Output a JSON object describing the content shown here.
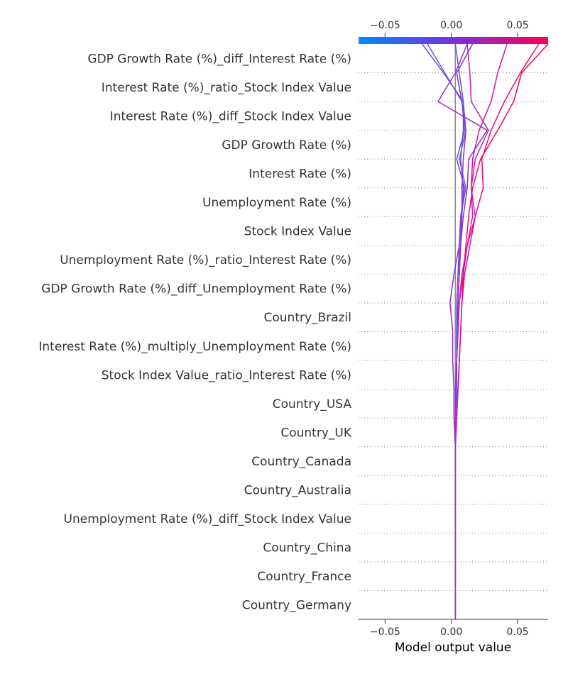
{
  "chart_data": {
    "type": "line",
    "title": "",
    "xlabel": "Model output value",
    "ylabel": "",
    "xlim": [
      -0.07,
      0.073
    ],
    "base_value": 0.003,
    "x_ticks": [
      -0.05,
      0.0,
      0.05
    ],
    "x_tick_labels": [
      "−0.05",
      "0.00",
      "0.05"
    ],
    "colorbar": {
      "colors": [
        "#008bfb",
        "#7a2fe0",
        "#ff0052"
      ]
    },
    "grid": "horizontal-dotted",
    "features": [
      "GDP Growth Rate (%)_diff_Interest Rate (%)",
      "Interest Rate (%)_ratio_Stock Index Value",
      "Interest Rate (%)_diff_Stock Index Value",
      "GDP Growth Rate (%)",
      "Interest Rate (%)",
      "Unemployment Rate (%)",
      "Stock Index Value",
      "Unemployment Rate (%)_ratio_Interest Rate (%)",
      "GDP Growth Rate (%)_diff_Unemployment Rate (%)",
      "Country_Brazil",
      "Interest Rate (%)_multiply_Unemployment Rate (%)",
      "Stock Index Value_ratio_Interest Rate (%)",
      "Country_USA",
      "Country_UK",
      "Country_Canada",
      "Country_Australia",
      "Unemployment Rate (%)_diff_Stock Index Value",
      "Country_China",
      "Country_France",
      "Country_Germany"
    ],
    "series": [
      {
        "color": "#ff0052",
        "values": [
          0.003,
          0.003,
          0.003,
          0.003,
          0.003,
          0.003,
          0.003,
          0.004,
          0.005,
          0.006,
          0.007,
          0.008,
          0.009,
          0.011,
          0.013,
          0.016,
          0.022,
          0.035,
          0.047,
          0.053,
          0.073
        ]
      },
      {
        "color": "#f0057a",
        "values": [
          0.003,
          0.003,
          0.003,
          0.003,
          0.003,
          0.003,
          0.003,
          0.003,
          0.004,
          0.004,
          0.005,
          0.006,
          0.009,
          0.012,
          0.018,
          0.024,
          0.023,
          0.03,
          0.04,
          0.052,
          0.066
        ]
      },
      {
        "color": "#d40ba8",
        "values": [
          0.003,
          0.003,
          0.003,
          0.003,
          0.003,
          0.003,
          0.003,
          0.004,
          0.005,
          0.006,
          0.007,
          0.008,
          0.01,
          0.014,
          0.018,
          0.015,
          0.016,
          0.021,
          0.03,
          0.035,
          0.042
        ]
      },
      {
        "color": "#b71fbf",
        "values": [
          0.003,
          0.003,
          0.003,
          0.003,
          0.003,
          0.003,
          0.003,
          0.003,
          0.004,
          0.004,
          0.005,
          0.006,
          0.008,
          0.012,
          0.016,
          0.015,
          0.018,
          0.028,
          0.015,
          0.014,
          0.012
        ]
      },
      {
        "color": "#8c30c9",
        "values": [
          0.003,
          0.003,
          0.003,
          0.003,
          0.003,
          0.003,
          0.003,
          0.002,
          0.002,
          0.001,
          0.001,
          -0.001,
          0.002,
          0.006,
          0.008,
          0.008,
          0.009,
          0.011,
          0.008,
          0.004,
          0.016
        ]
      },
      {
        "color": "#6d4ed6",
        "values": [
          0.003,
          0.003,
          0.003,
          0.003,
          0.003,
          0.003,
          0.003,
          0.003,
          0.004,
          0.004,
          0.004,
          0.005,
          0.006,
          0.007,
          0.008,
          0.009,
          0.007,
          0.009,
          0.009,
          0.006,
          0.003
        ]
      },
      {
        "color": "#6356d8",
        "values": [
          0.003,
          0.003,
          0.003,
          0.003,
          0.003,
          0.003,
          0.003,
          0.003,
          0.004,
          0.004,
          0.004,
          0.005,
          0.006,
          0.006,
          0.007,
          0.011,
          0.006,
          0.011,
          0.009,
          -0.006,
          -0.022
        ]
      },
      {
        "color": "#7a48d1",
        "values": [
          0.003,
          0.003,
          0.003,
          0.003,
          0.003,
          0.003,
          0.003,
          0.003,
          0.003,
          0.004,
          0.004,
          0.004,
          0.005,
          0.006,
          0.007,
          0.01,
          0.004,
          0.01,
          0.008,
          -0.005,
          -0.018
        ]
      },
      {
        "color": "#9a2fc6",
        "values": [
          0.003,
          0.003,
          0.003,
          0.003,
          0.003,
          0.003,
          0.003,
          0.003,
          0.003,
          0.004,
          0.005,
          0.005,
          0.006,
          0.007,
          0.009,
          0.012,
          0.013,
          0.027,
          -0.01,
          0.003,
          0.012
        ]
      }
    ]
  }
}
